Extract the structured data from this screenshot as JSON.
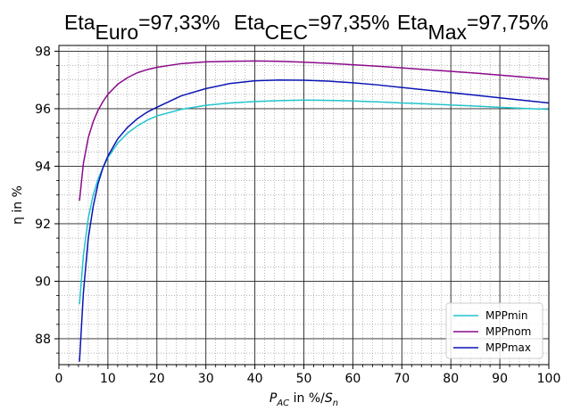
{
  "title": {
    "euro_prefix": "Eta",
    "euro_sub": "Euro",
    "euro_value": "=97,33%",
    "cec_prefix": "Eta",
    "cec_sub": "CEC",
    "cec_value": "=97,35%",
    "max_prefix": "Eta",
    "max_sub": "Max",
    "max_value": "=97,75%"
  },
  "chart_data": {
    "type": "line",
    "xlabel_main": "P",
    "xlabel_sub": "AC",
    "xlabel_mid": " in %/",
    "xlabel_s": "S",
    "xlabel_ssub": "n",
    "ylabel": "η in %",
    "xlim": [
      0,
      100
    ],
    "ylim": [
      87.1,
      98.2
    ],
    "xticks": [
      0,
      10,
      20,
      30,
      40,
      50,
      60,
      70,
      80,
      90,
      100
    ],
    "yticks": [
      88,
      90,
      92,
      94,
      96,
      98
    ],
    "grid": true,
    "legend_position": "bottom-right",
    "series": [
      {
        "name": "MPPmin",
        "color": "#22c4cc",
        "x": [
          4.2,
          5,
          6,
          7,
          8,
          9,
          10,
          12,
          14,
          16,
          18,
          20,
          25,
          30,
          35,
          40,
          45,
          50,
          55,
          60,
          65,
          70,
          75,
          80,
          85,
          90,
          95,
          100
        ],
        "y": [
          89.2,
          90.9,
          92.2,
          93.0,
          93.55,
          93.95,
          94.3,
          94.8,
          95.15,
          95.4,
          95.6,
          95.75,
          95.98,
          96.12,
          96.2,
          96.25,
          96.28,
          96.3,
          96.29,
          96.27,
          96.24,
          96.2,
          96.17,
          96.13,
          96.09,
          96.05,
          96.01,
          95.98
        ]
      },
      {
        "name": "MPPnom",
        "color": "#8b0a8b",
        "x": [
          4.2,
          5,
          6,
          7,
          8,
          9,
          10,
          12,
          14,
          16,
          18,
          20,
          25,
          30,
          35,
          40,
          45,
          50,
          55,
          60,
          65,
          70,
          75,
          80,
          85,
          90,
          95,
          100
        ],
        "y": [
          92.8,
          94.1,
          95.0,
          95.55,
          95.95,
          96.25,
          96.5,
          96.85,
          97.08,
          97.25,
          97.36,
          97.44,
          97.57,
          97.63,
          97.65,
          97.66,
          97.65,
          97.62,
          97.58,
          97.53,
          97.48,
          97.42,
          97.36,
          97.3,
          97.24,
          97.17,
          97.1,
          97.03
        ]
      },
      {
        "name": "MPPmax",
        "color": "#0a14b4",
        "x": [
          4.2,
          5,
          6,
          7,
          8,
          9,
          10,
          12,
          14,
          16,
          18,
          20,
          25,
          30,
          35,
          40,
          45,
          50,
          55,
          60,
          65,
          70,
          75,
          80,
          85,
          90,
          95,
          100
        ],
        "y": [
          87.2,
          89.6,
          91.5,
          92.6,
          93.4,
          93.95,
          94.35,
          94.95,
          95.35,
          95.65,
          95.88,
          96.05,
          96.45,
          96.7,
          96.88,
          96.97,
          97.0,
          96.99,
          96.96,
          96.9,
          96.83,
          96.74,
          96.65,
          96.56,
          96.47,
          96.38,
          96.29,
          96.2
        ]
      }
    ]
  }
}
